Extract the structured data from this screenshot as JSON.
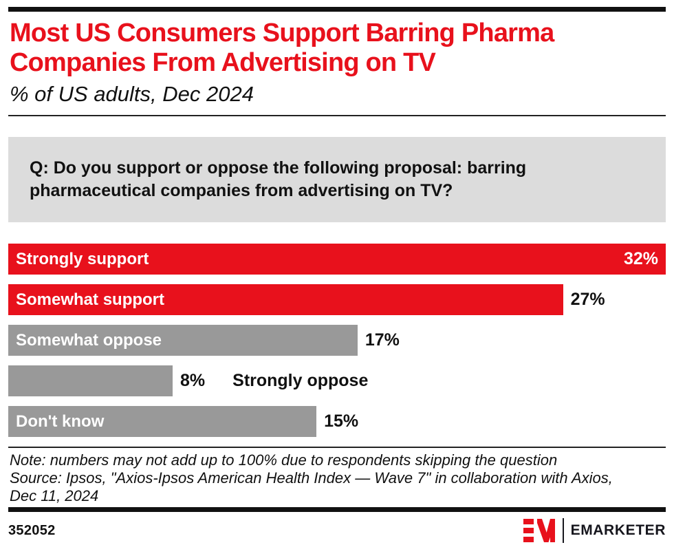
{
  "header": {
    "title_line1": "Most US Consumers Support Barring Pharma",
    "title_line2": "Companies From Advertising on TV",
    "subtitle": "% of US adults, Dec 2024"
  },
  "question": {
    "line1": "Q: Do you support or oppose the following proposal: barring",
    "line2": "pharmaceutical companies from advertising on TV?"
  },
  "bars": [
    {
      "label": "Strongly support",
      "value": 32,
      "display": "32%",
      "color": "#e8111c",
      "label_pos": "inside",
      "value_pos": "inside"
    },
    {
      "label": "Somewhat support",
      "value": 27,
      "display": "27%",
      "color": "#e8111c",
      "label_pos": "inside",
      "value_pos": "outside"
    },
    {
      "label": "Somewhat oppose",
      "value": 17,
      "display": "17%",
      "color": "#999999",
      "label_pos": "inside",
      "value_pos": "outside"
    },
    {
      "label": "Strongly oppose",
      "value": 8,
      "display": "8%",
      "color": "#999999",
      "label_pos": "outside",
      "value_pos": "outside"
    },
    {
      "label": "Don't know",
      "value": 15,
      "display": "15%",
      "color": "#999999",
      "label_pos": "inside",
      "value_pos": "outside"
    }
  ],
  "footer": {
    "note": "Note: numbers may not add up to 100% due to respondents skipping the question",
    "source_line1": "Source: Ipsos, \"Axios-Ipsos American Health Index — Wave 7\" in collaboration with Axios,",
    "source_line2": "Dec 11, 2024",
    "chart_id": "352052",
    "logo_text": "EMARKETER"
  },
  "colors": {
    "red": "#e8111c",
    "gray": "#999999",
    "question_box_bg": "#dcdcdc",
    "rule_black": "#111111"
  },
  "chart_data": {
    "type": "bar",
    "orientation": "horizontal",
    "title": "Most US Consumers Support Barring Pharma Companies From Advertising on TV",
    "subtitle": "% of US adults, Dec 2024",
    "categories": [
      "Strongly support",
      "Somewhat support",
      "Somewhat oppose",
      "Strongly oppose",
      "Don't know"
    ],
    "values": [
      32,
      27,
      17,
      8,
      15
    ],
    "unit": "%",
    "xlim": [
      0,
      32
    ],
    "grid": false,
    "legend": false,
    "bar_colors": [
      "#e8111c",
      "#e8111c",
      "#999999",
      "#999999",
      "#999999"
    ]
  }
}
